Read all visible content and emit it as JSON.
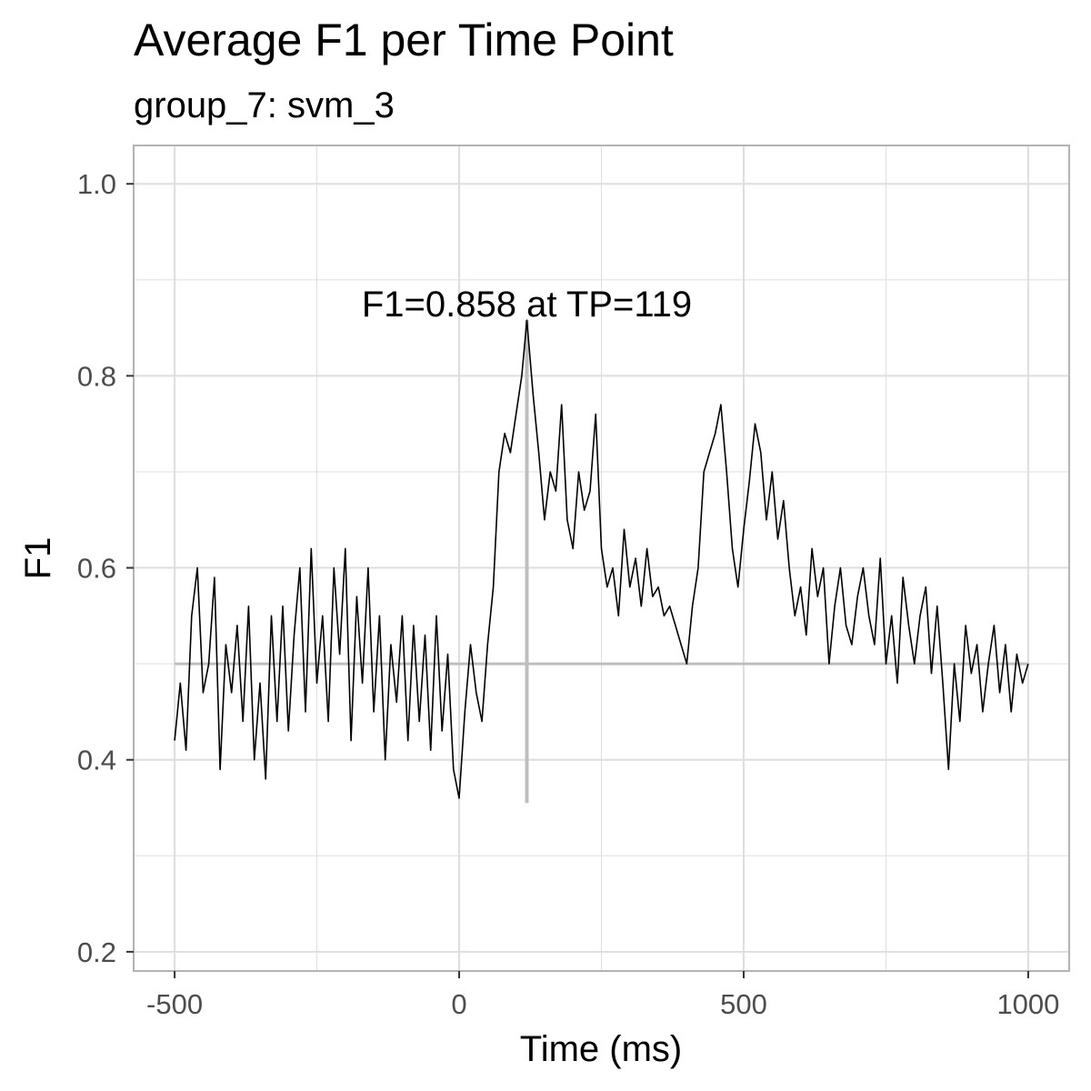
{
  "chart_data": {
    "type": "line",
    "title": "Average F1 per Time Point",
    "subtitle": "group_7: svm_3",
    "xlabel": "Time (ms)",
    "ylabel": "F1",
    "xlim": [
      -572,
      1072
    ],
    "ylim": [
      0.18,
      1.04
    ],
    "x_ticks": [
      -500,
      0,
      500,
      1000
    ],
    "x_tick_labels": [
      "-500",
      "0",
      "500",
      "1000"
    ],
    "y_ticks": [
      0.2,
      0.4,
      0.6,
      0.8,
      1.0
    ],
    "y_tick_labels": [
      "0.2",
      "0.4",
      "0.6",
      "0.8",
      "1.0"
    ],
    "grid": true,
    "reference_lines": {
      "chance_level_y": 0.5,
      "peak_marker_x": 119,
      "peak_marker_y_range": [
        0.355,
        0.858
      ]
    },
    "annotation": {
      "text": "F1=0.858 at TP=119",
      "x": 119,
      "y": 0.875
    },
    "colors": {
      "series": "#000000",
      "reference": "#bebebe",
      "grid": "#dedede",
      "panel_border": "#b3b3b3",
      "tick_label": "#4d4d4d"
    },
    "series": [
      {
        "x": [
          -500,
          -490,
          -480,
          -470,
          -460,
          -450,
          -440,
          -430,
          -420,
          -410,
          -400,
          -390,
          -380,
          -370,
          -360,
          -350,
          -340,
          -330,
          -320,
          -310,
          -300,
          -290,
          -280,
          -270,
          -260,
          -250,
          -240,
          -230,
          -220,
          -210,
          -200,
          -190,
          -180,
          -170,
          -160,
          -150,
          -140,
          -130,
          -120,
          -110,
          -100,
          -90,
          -80,
          -70,
          -60,
          -50,
          -40,
          -30,
          -20,
          -10,
          0,
          10,
          20,
          30,
          40,
          50,
          60,
          70,
          80,
          90,
          100,
          110,
          119,
          130,
          140,
          150,
          160,
          170,
          180,
          190,
          200,
          210,
          220,
          230,
          240,
          250,
          260,
          270,
          280,
          290,
          300,
          310,
          320,
          330,
          340,
          350,
          360,
          370,
          380,
          390,
          400,
          410,
          420,
          430,
          440,
          450,
          460,
          470,
          480,
          490,
          500,
          510,
          520,
          530,
          540,
          550,
          560,
          570,
          580,
          590,
          600,
          610,
          620,
          630,
          640,
          650,
          660,
          670,
          680,
          690,
          700,
          710,
          720,
          730,
          740,
          750,
          760,
          770,
          780,
          790,
          800,
          810,
          820,
          830,
          840,
          850,
          860,
          870,
          880,
          890,
          900,
          910,
          920,
          930,
          940,
          950,
          960,
          970,
          980,
          990,
          1000
        ],
        "y": [
          0.42,
          0.48,
          0.41,
          0.55,
          0.6,
          0.47,
          0.5,
          0.59,
          0.39,
          0.52,
          0.47,
          0.54,
          0.44,
          0.56,
          0.4,
          0.48,
          0.38,
          0.55,
          0.44,
          0.56,
          0.43,
          0.53,
          0.6,
          0.45,
          0.62,
          0.48,
          0.55,
          0.44,
          0.6,
          0.51,
          0.62,
          0.42,
          0.57,
          0.48,
          0.6,
          0.45,
          0.55,
          0.4,
          0.52,
          0.46,
          0.55,
          0.42,
          0.54,
          0.44,
          0.53,
          0.41,
          0.55,
          0.43,
          0.51,
          0.39,
          0.36,
          0.45,
          0.52,
          0.47,
          0.44,
          0.52,
          0.58,
          0.7,
          0.74,
          0.72,
          0.76,
          0.8,
          0.858,
          0.78,
          0.72,
          0.65,
          0.7,
          0.68,
          0.77,
          0.65,
          0.62,
          0.7,
          0.66,
          0.68,
          0.76,
          0.62,
          0.58,
          0.6,
          0.55,
          0.64,
          0.58,
          0.61,
          0.56,
          0.62,
          0.57,
          0.58,
          0.55,
          0.56,
          0.54,
          0.52,
          0.5,
          0.56,
          0.6,
          0.7,
          0.72,
          0.74,
          0.77,
          0.7,
          0.62,
          0.58,
          0.64,
          0.69,
          0.75,
          0.72,
          0.65,
          0.7,
          0.63,
          0.67,
          0.6,
          0.55,
          0.58,
          0.53,
          0.62,
          0.57,
          0.6,
          0.5,
          0.56,
          0.6,
          0.54,
          0.52,
          0.57,
          0.6,
          0.55,
          0.52,
          0.61,
          0.5,
          0.55,
          0.48,
          0.59,
          0.54,
          0.5,
          0.55,
          0.58,
          0.49,
          0.56,
          0.48,
          0.39,
          0.5,
          0.44,
          0.54,
          0.49,
          0.52,
          0.45,
          0.5,
          0.54,
          0.47,
          0.52,
          0.45,
          0.51,
          0.48,
          0.5
        ]
      }
    ]
  }
}
